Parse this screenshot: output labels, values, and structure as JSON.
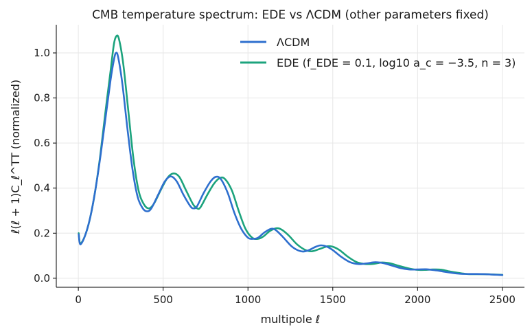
{
  "chart_data": {
    "type": "line",
    "title": "CMB temperature spectrum: EDE vs ΛCDM (other parameters fixed)",
    "xlabel": "multipole ℓ",
    "ylabel": "ℓ(ℓ + 1)C_ℓ^TT (normalized)",
    "xlim": [
      -130,
      2630
    ],
    "ylim": [
      -0.04,
      1.125
    ],
    "xticks": [
      0,
      500,
      1000,
      1500,
      2000,
      2500
    ],
    "yticks": [
      0.0,
      0.2,
      0.4,
      0.6,
      0.8,
      1.0
    ],
    "xtick_labels": [
      "0",
      "500",
      "1000",
      "1500",
      "2000",
      "2500"
    ],
    "ytick_labels": [
      "0.0",
      "0.2",
      "0.4",
      "0.6",
      "0.8",
      "1.0"
    ],
    "grid": true,
    "legend_position": "top-right",
    "series": [
      {
        "name": "ΛCDM",
        "color": "#2e6fce",
        "points": [
          [
            2,
            0.195
          ],
          [
            12,
            0.15
          ],
          [
            40,
            0.19
          ],
          [
            70,
            0.27
          ],
          [
            100,
            0.39
          ],
          [
            130,
            0.54
          ],
          [
            160,
            0.71
          ],
          [
            190,
            0.88
          ],
          [
            210,
            0.97
          ],
          [
            222,
            1.0
          ],
          [
            235,
            0.98
          ],
          [
            260,
            0.86
          ],
          [
            290,
            0.66
          ],
          [
            320,
            0.48
          ],
          [
            350,
            0.36
          ],
          [
            380,
            0.31
          ],
          [
            405,
            0.297
          ],
          [
            430,
            0.31
          ],
          [
            470,
            0.37
          ],
          [
            510,
            0.43
          ],
          [
            545,
            0.452
          ],
          [
            580,
            0.43
          ],
          [
            620,
            0.37
          ],
          [
            660,
            0.32
          ],
          [
            680,
            0.31
          ],
          [
            700,
            0.32
          ],
          [
            740,
            0.38
          ],
          [
            780,
            0.43
          ],
          [
            810,
            0.45
          ],
          [
            840,
            0.44
          ],
          [
            880,
            0.38
          ],
          [
            920,
            0.29
          ],
          [
            960,
            0.22
          ],
          [
            1000,
            0.18
          ],
          [
            1030,
            0.175
          ],
          [
            1060,
            0.18
          ],
          [
            1100,
            0.205
          ],
          [
            1140,
            0.22
          ],
          [
            1170,
            0.21
          ],
          [
            1210,
            0.18
          ],
          [
            1260,
            0.14
          ],
          [
            1310,
            0.12
          ],
          [
            1350,
            0.122
          ],
          [
            1400,
            0.14
          ],
          [
            1430,
            0.146
          ],
          [
            1460,
            0.142
          ],
          [
            1500,
            0.125
          ],
          [
            1550,
            0.095
          ],
          [
            1600,
            0.072
          ],
          [
            1650,
            0.063
          ],
          [
            1700,
            0.066
          ],
          [
            1750,
            0.071
          ],
          [
            1800,
            0.067
          ],
          [
            1850,
            0.056
          ],
          [
            1900,
            0.045
          ],
          [
            1950,
            0.039
          ],
          [
            2000,
            0.039
          ],
          [
            2050,
            0.04
          ],
          [
            2100,
            0.036
          ],
          [
            2150,
            0.03
          ],
          [
            2200,
            0.024
          ],
          [
            2250,
            0.02
          ],
          [
            2300,
            0.019
          ],
          [
            2350,
            0.019
          ],
          [
            2400,
            0.018
          ],
          [
            2450,
            0.016
          ],
          [
            2500,
            0.014
          ]
        ]
      },
      {
        "name": "EDE (f_EDE = 0.1, log10 a_c = −3.5, n = 3)",
        "color": "#1ca37d",
        "points": [
          [
            2,
            0.2
          ],
          [
            12,
            0.155
          ],
          [
            40,
            0.19
          ],
          [
            70,
            0.27
          ],
          [
            100,
            0.39
          ],
          [
            130,
            0.55
          ],
          [
            160,
            0.74
          ],
          [
            190,
            0.92
          ],
          [
            210,
            1.04
          ],
          [
            225,
            1.075
          ],
          [
            240,
            1.06
          ],
          [
            265,
            0.95
          ],
          [
            295,
            0.74
          ],
          [
            325,
            0.53
          ],
          [
            355,
            0.39
          ],
          [
            385,
            0.33
          ],
          [
            415,
            0.31
          ],
          [
            445,
            0.33
          ],
          [
            485,
            0.39
          ],
          [
            525,
            0.445
          ],
          [
            560,
            0.465
          ],
          [
            595,
            0.45
          ],
          [
            635,
            0.39
          ],
          [
            675,
            0.33
          ],
          [
            700,
            0.31
          ],
          [
            720,
            0.315
          ],
          [
            760,
            0.37
          ],
          [
            800,
            0.42
          ],
          [
            835,
            0.445
          ],
          [
            865,
            0.44
          ],
          [
            905,
            0.39
          ],
          [
            945,
            0.3
          ],
          [
            985,
            0.22
          ],
          [
            1025,
            0.18
          ],
          [
            1060,
            0.175
          ],
          [
            1090,
            0.185
          ],
          [
            1130,
            0.21
          ],
          [
            1170,
            0.222
          ],
          [
            1200,
            0.215
          ],
          [
            1240,
            0.19
          ],
          [
            1290,
            0.15
          ],
          [
            1340,
            0.125
          ],
          [
            1380,
            0.12
          ],
          [
            1430,
            0.132
          ],
          [
            1470,
            0.142
          ],
          [
            1500,
            0.14
          ],
          [
            1540,
            0.125
          ],
          [
            1590,
            0.095
          ],
          [
            1640,
            0.072
          ],
          [
            1690,
            0.063
          ],
          [
            1740,
            0.064
          ],
          [
            1790,
            0.07
          ],
          [
            1840,
            0.066
          ],
          [
            1890,
            0.055
          ],
          [
            1940,
            0.045
          ],
          [
            1990,
            0.038
          ],
          [
            2040,
            0.037
          ],
          [
            2090,
            0.039
          ],
          [
            2140,
            0.038
          ],
          [
            2190,
            0.03
          ],
          [
            2240,
            0.024
          ],
          [
            2290,
            0.019
          ],
          [
            2340,
            0.018
          ],
          [
            2390,
            0.018
          ],
          [
            2440,
            0.017
          ],
          [
            2500,
            0.015
          ]
        ]
      }
    ]
  }
}
